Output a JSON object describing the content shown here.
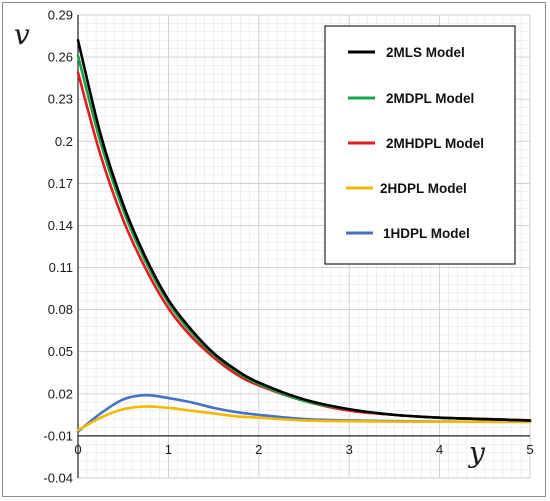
{
  "chart_data": {
    "type": "line",
    "title": "",
    "xlabel": "y",
    "ylabel": "v",
    "xlim": [
      0,
      5
    ],
    "ylim": [
      -0.04,
      0.29
    ],
    "x_ticks": [
      "0",
      "1",
      "2",
      "3",
      "4",
      "5"
    ],
    "y_ticks": [
      "-0.04",
      "-0.01",
      "0.02",
      "0.05",
      "0.08",
      "0.11",
      "0.14",
      "0.17",
      "0.2",
      "0.23",
      "0.26",
      "0.29"
    ],
    "grid": true,
    "legend_position": "top-right",
    "series": [
      {
        "name": "2MLS Model",
        "color": "#000000",
        "x": [
          0,
          0.25,
          0.5,
          0.75,
          1,
          1.25,
          1.5,
          1.75,
          2,
          2.5,
          3,
          3.5,
          4,
          4.5,
          5
        ],
        "y": [
          0.272,
          0.205,
          0.155,
          0.117,
          0.087,
          0.066,
          0.049,
          0.037,
          0.028,
          0.016,
          0.009,
          0.005,
          0.003,
          0.002,
          0.001
        ]
      },
      {
        "name": "2MDPL Model",
        "color": "#16a34a",
        "x": [
          0,
          0.25,
          0.5,
          0.75,
          1,
          1.25,
          1.5,
          1.75,
          2,
          2.5,
          3,
          3.5,
          4,
          4.5,
          5
        ],
        "y": [
          0.261,
          0.199,
          0.151,
          0.114,
          0.085,
          0.064,
          0.048,
          0.036,
          0.027,
          0.015,
          0.009,
          0.005,
          0.003,
          0.002,
          0.001
        ]
      },
      {
        "name": "2MHDPL Model",
        "color": "#e41a1c",
        "x": [
          0,
          0.25,
          0.5,
          0.75,
          1,
          1.25,
          1.5,
          1.75,
          2,
          2.5,
          3,
          3.5,
          4,
          4.5,
          5
        ],
        "y": [
          0.249,
          0.19,
          0.144,
          0.109,
          0.081,
          0.061,
          0.046,
          0.034,
          0.026,
          0.015,
          0.008,
          0.005,
          0.003,
          0.002,
          0.001
        ]
      },
      {
        "name": "2HDPL Model",
        "color": "#f5b800",
        "x": [
          0,
          0.25,
          0.5,
          0.75,
          1,
          1.25,
          1.5,
          1.75,
          2,
          2.5,
          3,
          3.5,
          4,
          4.5,
          5
        ],
        "y": [
          -0.006,
          0.003,
          0.009,
          0.011,
          0.01,
          0.008,
          0.006,
          0.004,
          0.003,
          0.001,
          0.0005,
          0.0002,
          0.0001,
          0,
          0
        ]
      },
      {
        "name": "1HDPL Model",
        "color": "#4472c4",
        "x": [
          0,
          0.25,
          0.5,
          0.75,
          1,
          1.25,
          1.5,
          1.75,
          2,
          2.5,
          3,
          3.5,
          4,
          4.5,
          5
        ],
        "y": [
          -0.007,
          0.006,
          0.016,
          0.019,
          0.017,
          0.014,
          0.01,
          0.007,
          0.005,
          0.002,
          0.001,
          0.0005,
          0.0002,
          0.0001,
          0
        ]
      }
    ]
  }
}
